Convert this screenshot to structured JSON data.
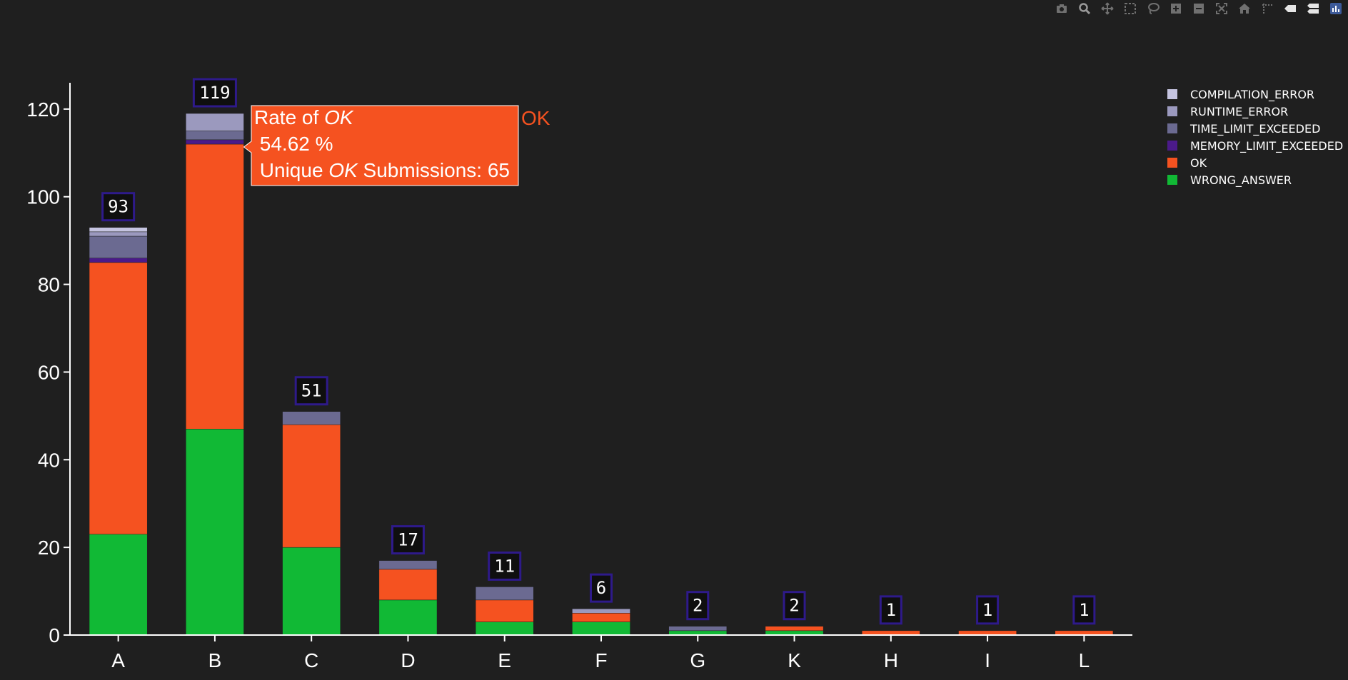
{
  "modebar": {
    "buttons": [
      "camera-icon",
      "zoom-icon",
      "pan-icon",
      "box-select-icon",
      "lasso-select-icon",
      "zoom-in-icon",
      "zoom-out-icon",
      "autoscale-icon",
      "reset-axes-icon",
      "spike-lines-icon",
      "hover-closest-icon",
      "hover-compare-icon",
      "plotly-logo-icon"
    ]
  },
  "chart_data": {
    "type": "bar",
    "barmode": "stack",
    "categories": [
      "A",
      "B",
      "C",
      "D",
      "E",
      "F",
      "G",
      "K",
      "H",
      "I",
      "L"
    ],
    "series": [
      {
        "name": "WRONG_ANSWER",
        "color": "#11b935",
        "values": [
          23,
          47,
          20,
          8,
          3,
          3,
          1,
          1,
          0,
          0,
          0
        ]
      },
      {
        "name": "OK",
        "color": "#f55220",
        "values": [
          62,
          65,
          28,
          7,
          5,
          2,
          0,
          1,
          1,
          1,
          1
        ]
      },
      {
        "name": "MEMORY_LIMIT_EXCEEDED",
        "color": "#4b1a8a",
        "values": [
          1,
          1,
          0,
          0,
          0,
          0,
          0,
          0,
          0,
          0,
          0
        ]
      },
      {
        "name": "TIME_LIMIT_EXCEEDED",
        "color": "#6b6a91",
        "values": [
          5,
          2,
          3,
          2,
          3,
          0,
          1,
          0,
          0,
          0,
          0
        ]
      },
      {
        "name": "RUNTIME_ERROR",
        "color": "#9b99be",
        "values": [
          1,
          4,
          0,
          0,
          0,
          1,
          0,
          0,
          0,
          0,
          0
        ]
      },
      {
        "name": "COMPILATION_ERROR",
        "color": "#c5c4e0",
        "values": [
          1,
          0,
          0,
          0,
          0,
          0,
          0,
          0,
          0,
          0,
          0
        ]
      }
    ],
    "totals": [
      "93",
      "119",
      "51",
      "17",
      "11",
      "6",
      "2",
      "2",
      "1",
      "1",
      "1"
    ],
    "yticks": [
      "0",
      "20",
      "40",
      "60",
      "80",
      "100",
      "120"
    ],
    "ylim": [
      0,
      126
    ],
    "legend_order": [
      "COMPILATION_ERROR",
      "RUNTIME_ERROR",
      "TIME_LIMIT_EXCEEDED",
      "MEMORY_LIMIT_EXCEEDED",
      "OK",
      "WRONG_ANSWER"
    ],
    "legend_position": "top-right",
    "grid": false,
    "hover": {
      "category": "B",
      "series": "OK",
      "line1_prefix": "Rate of ",
      "line1_em": "OK",
      "line2": " 54.62 %",
      "line3_prefix": " Unique ",
      "line3_em": "OK",
      "line3_suffix": " Submissions: 65",
      "trace_name": "OK"
    }
  }
}
